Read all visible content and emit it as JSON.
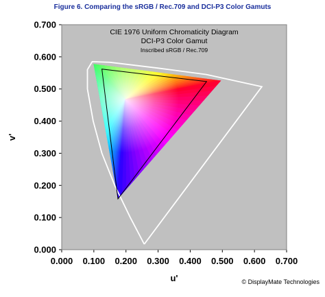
{
  "figure": {
    "title": "Figure 6.  Comparing the sRGB / Rec.709 and DCI-P3 Color Gamuts",
    "credit": "© DisplayMate Technologies"
  },
  "colors": {
    "title": "#1a2f9c",
    "plot_background": "#c0c0c0",
    "locus": "#ffffff",
    "srgb_outline": "#000000"
  },
  "chart_data": {
    "type": "scatter",
    "title_lines": [
      "CIE 1976 Uniform Chromaticity Diagram",
      "DCI-P3 Color Gamut"
    ],
    "subtitle": "Inscribed sRGB / Rec.709",
    "xlabel": "u'",
    "ylabel": "v'",
    "xlim": [
      0.0,
      0.7
    ],
    "ylim": [
      0.0,
      0.7
    ],
    "xticks": [
      "0.000",
      "0.100",
      "0.200",
      "0.300",
      "0.400",
      "0.500",
      "0.600",
      "0.700"
    ],
    "yticks": [
      "0.000",
      "0.100",
      "0.200",
      "0.300",
      "0.400",
      "0.500",
      "0.600",
      "0.700"
    ],
    "grid": false,
    "series": [
      {
        "name": "DCI-P3",
        "style": "filled-gradient",
        "points": [
          {
            "vertex": "red",
            "u": 0.496,
            "v": 0.526
          },
          {
            "vertex": "green",
            "u": 0.099,
            "v": 0.578
          },
          {
            "vertex": "blue",
            "u": 0.175,
            "v": 0.158
          }
        ]
      },
      {
        "name": "sRGB / Rec.709",
        "style": "outline",
        "points": [
          {
            "vertex": "red",
            "u": 0.451,
            "v": 0.523
          },
          {
            "vertex": "green",
            "u": 0.125,
            "v": 0.562
          },
          {
            "vertex": "blue",
            "u": 0.175,
            "v": 0.158
          }
        ]
      },
      {
        "name": "Spectral locus",
        "style": "outline",
        "points": [
          {
            "u": 0.257,
            "v": 0.017
          },
          {
            "u": 0.213,
            "v": 0.101
          },
          {
            "u": 0.165,
            "v": 0.2
          },
          {
            "u": 0.125,
            "v": 0.3
          },
          {
            "u": 0.098,
            "v": 0.4
          },
          {
            "u": 0.08,
            "v": 0.5
          },
          {
            "u": 0.08,
            "v": 0.56
          },
          {
            "u": 0.095,
            "v": 0.585
          },
          {
            "u": 0.15,
            "v": 0.583
          },
          {
            "u": 0.3,
            "v": 0.565
          },
          {
            "u": 0.45,
            "v": 0.545
          },
          {
            "u": 0.623,
            "v": 0.507
          },
          {
            "u": 0.257,
            "v": 0.017
          }
        ]
      }
    ]
  }
}
